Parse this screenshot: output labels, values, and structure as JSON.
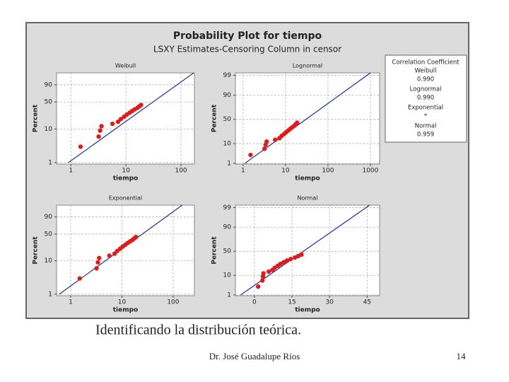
{
  "figure": {
    "title": "Probability Plot for tiempo",
    "subtitle": "LSXY Estimates-Censoring Column in censor"
  },
  "legend_box": {
    "title": "Correlation Coefficient",
    "entries": [
      {
        "name": "Weibull",
        "value": "0.990"
      },
      {
        "name": "Lognormal",
        "value": "0.990"
      },
      {
        "name": "Exponential",
        "value": "*"
      },
      {
        "name": "Normal",
        "value": "0.959"
      }
    ]
  },
  "chart_data": [
    {
      "type": "probability",
      "title": "Weibull",
      "xlabel": "tiempo",
      "ylabel": "Percent",
      "xscale": "log",
      "yscale": "weibull",
      "grid": true,
      "xlim": [
        0.55,
        175
      ],
      "xticks": [
        1,
        10,
        100
      ],
      "ylim": [
        0.9,
        99.5
      ],
      "yticks": [
        1,
        10,
        50,
        90
      ],
      "x": [
        1.5,
        3.2,
        3.4,
        3.6,
        5.7,
        7.2,
        8.1,
        9.3,
        10.4,
        11.7,
        13.0,
        14.5,
        16.2,
        17.5,
        18.8
      ],
      "values": [
        3,
        6,
        9,
        12,
        14,
        16,
        19,
        22,
        25,
        28,
        31,
        34,
        37,
        40,
        43
      ],
      "color": "#dd1c1c",
      "fit": {
        "x": [
          0.9,
          170
        ],
        "values": [
          1,
          99.5
        ],
        "color": "#1f2d9c"
      }
    },
    {
      "type": "probability",
      "title": "Lognormal",
      "xlabel": "tiempo",
      "ylabel": "Percent",
      "xscale": "log",
      "yscale": "normal",
      "grid": true,
      "xlim": [
        0.66,
        1650
      ],
      "xticks": [
        1,
        10,
        100,
        1000
      ],
      "ylim": [
        0.9,
        99.3
      ],
      "yticks": [
        1,
        10,
        50,
        90,
        99
      ],
      "x": [
        1.5,
        3.2,
        3.4,
        3.6,
        5.7,
        7.2,
        8.1,
        9.3,
        10.4,
        11.7,
        13.0,
        14.5,
        16.2,
        17.5,
        18.8
      ],
      "values": [
        3,
        6,
        9,
        12,
        14,
        16,
        19,
        22,
        25,
        28,
        31,
        34,
        37,
        40,
        43
      ],
      "color": "#dd1c1c",
      "fit": {
        "x": [
          1.1,
          1000
        ],
        "values": [
          1,
          99.3
        ],
        "color": "#1f2d9c"
      }
    },
    {
      "type": "probability",
      "title": "Exponential",
      "xlabel": "tiempo",
      "ylabel": "Percent",
      "xscale": "log",
      "yscale": "weibull",
      "grid": true,
      "xlim": [
        0.53,
        260
      ],
      "xticks": [
        1,
        10,
        100
      ],
      "ylim": [
        0.9,
        99.5
      ],
      "yticks": [
        1,
        10,
        50,
        90
      ],
      "x": [
        1.5,
        3.2,
        3.4,
        3.6,
        5.7,
        7.2,
        8.1,
        9.3,
        10.4,
        11.7,
        13.0,
        14.5,
        16.2,
        17.5,
        18.8
      ],
      "values": [
        3,
        6,
        9,
        12,
        14,
        16,
        19,
        22,
        25,
        28,
        31,
        34,
        37,
        40,
        43
      ],
      "color": "#dd1c1c",
      "fit": {
        "x": [
          0.6,
          150
        ],
        "values": [
          1,
          99.5
        ],
        "color": "#1f2d9c"
      }
    },
    {
      "type": "probability",
      "title": "Normal",
      "xlabel": "tiempo",
      "ylabel": "Percent",
      "xscale": "linear",
      "yscale": "normal",
      "grid": true,
      "xlim": [
        -7.6,
        50
      ],
      "xticks": [
        0,
        15,
        30,
        45
      ],
      "ylim": [
        0.9,
        99.3
      ],
      "yticks": [
        1,
        10,
        50,
        90,
        99
      ],
      "x": [
        1.5,
        3.2,
        3.4,
        3.6,
        5.7,
        7.2,
        8.1,
        9.3,
        10.4,
        11.7,
        13.0,
        14.5,
        16.2,
        17.5,
        18.8
      ],
      "values": [
        3,
        6,
        9,
        12,
        14,
        16,
        19,
        22,
        25,
        28,
        31,
        34,
        37,
        40,
        43
      ],
      "color": "#dd1c1c",
      "fit": {
        "x": [
          -5.5,
          46
        ],
        "values": [
          1,
          99.3
        ],
        "color": "#1f2d9c"
      }
    }
  ],
  "slide": {
    "caption": "Identificando la distribución teórica.",
    "footer": "Dr. José Guadalupe Ríos",
    "page_number": "14"
  }
}
